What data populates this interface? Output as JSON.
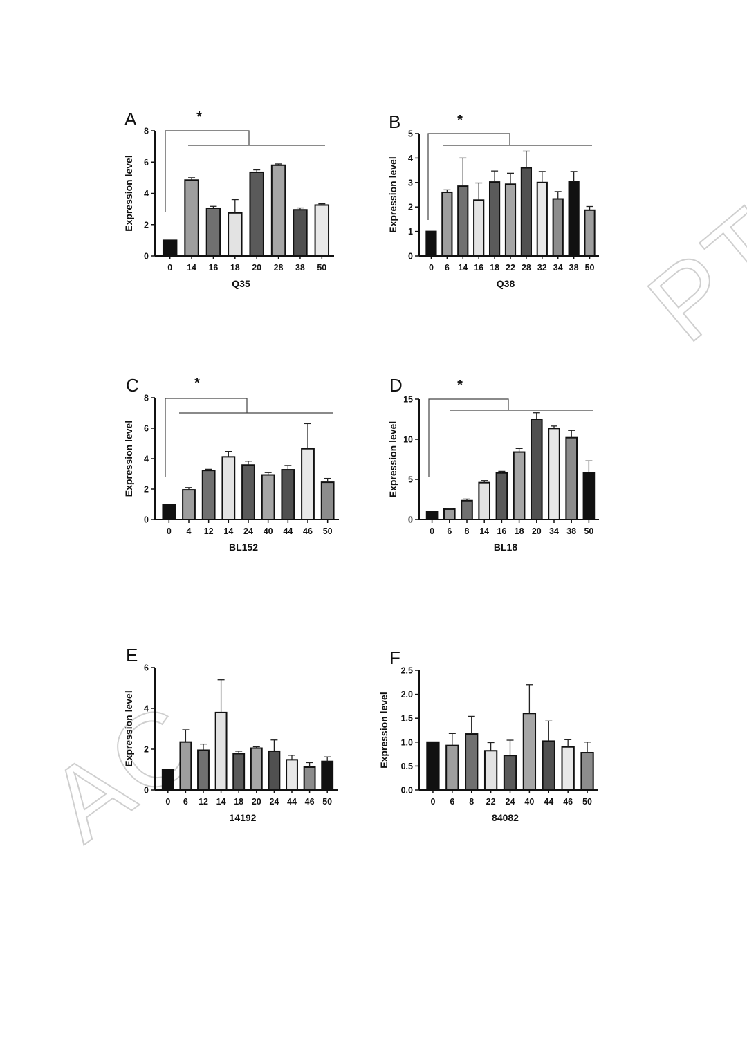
{
  "watermark": {
    "left": "AC",
    "right": "PT"
  },
  "chart_data": [
    {
      "type": "bar",
      "panel": "A",
      "title": "",
      "xlabel": "Q35",
      "ylabel": "Expression level",
      "ylim": [
        0,
        8
      ],
      "yticks": [
        0,
        2,
        4,
        6,
        8
      ],
      "ytick_labels": [
        "0",
        "2",
        "4",
        "6",
        "8"
      ],
      "categories": [
        "0",
        "14",
        "16",
        "18",
        "20",
        "28",
        "38",
        "50"
      ],
      "values": [
        1.0,
        4.85,
        3.05,
        2.75,
        5.35,
        5.8,
        2.95,
        3.25
      ],
      "errors": [
        0,
        0.15,
        0.12,
        0.85,
        0.15,
        0.08,
        0.12,
        0.08
      ],
      "colors": [
        "#111111",
        "#9e9e9e",
        "#707070",
        "#e3e3e3",
        "#5a5a5a",
        "#a6a6a6",
        "#505050",
        "#e8e8e8"
      ],
      "significance": {
        "label": "*",
        "anchor": "0",
        "span": [
          "14",
          "50"
        ]
      }
    },
    {
      "type": "bar",
      "panel": "B",
      "title": "",
      "xlabel": "Q38",
      "ylabel": "Expression level",
      "ylim": [
        0,
        5
      ],
      "yticks": [
        0,
        1,
        2,
        3,
        4,
        5
      ],
      "ytick_labels": [
        "0",
        "1",
        "2",
        "3",
        "4",
        "5"
      ],
      "categories": [
        "0",
        "6",
        "14",
        "16",
        "18",
        "22",
        "28",
        "32",
        "34",
        "38",
        "50"
      ],
      "values": [
        1.0,
        2.6,
        2.85,
        2.28,
        3.02,
        2.93,
        3.6,
        3.0,
        2.33,
        3.03,
        1.87
      ],
      "errors": [
        0,
        0.1,
        1.15,
        0.7,
        0.45,
        0.45,
        0.68,
        0.45,
        0.3,
        0.42,
        0.15
      ],
      "colors": [
        "#111111",
        "#9e9e9e",
        "#707070",
        "#e3e3e3",
        "#5a5a5a",
        "#a6a6a6",
        "#505050",
        "#e8e8e8",
        "#8c8c8c",
        "#111111",
        "#9e9e9e"
      ],
      "significance": {
        "label": "*",
        "anchor": "0",
        "span": [
          "6",
          "50"
        ]
      }
    },
    {
      "type": "bar",
      "panel": "C",
      "title": "",
      "xlabel": "BL152",
      "ylabel": "Expression level",
      "ylim": [
        0,
        8
      ],
      "yticks": [
        0,
        2,
        4,
        6,
        8
      ],
      "ytick_labels": [
        "0",
        "2",
        "4",
        "6",
        "8"
      ],
      "categories": [
        "0",
        "4",
        "12",
        "14",
        "24",
        "40",
        "44",
        "46",
        "50"
      ],
      "values": [
        1.0,
        1.95,
        3.22,
        4.12,
        3.58,
        2.93,
        3.27,
        4.65,
        2.45
      ],
      "errors": [
        0,
        0.15,
        0.08,
        0.35,
        0.25,
        0.15,
        0.28,
        1.65,
        0.25
      ],
      "colors": [
        "#111111",
        "#9e9e9e",
        "#707070",
        "#e3e3e3",
        "#5a5a5a",
        "#a6a6a6",
        "#505050",
        "#e8e8e8",
        "#8c8c8c"
      ],
      "significance": {
        "label": "*",
        "anchor": "0",
        "span": [
          "4",
          "50"
        ]
      }
    },
    {
      "type": "bar",
      "panel": "D",
      "title": "",
      "xlabel": "BL18",
      "ylabel": "Expression level",
      "ylim": [
        0,
        15
      ],
      "yticks": [
        0,
        5,
        10,
        15
      ],
      "ytick_labels": [
        "0",
        "5",
        "10",
        "15"
      ],
      "categories": [
        "0",
        "6",
        "8",
        "14",
        "16",
        "18",
        "20",
        "34",
        "38",
        "50"
      ],
      "values": [
        1.0,
        1.3,
        2.35,
        4.6,
        5.8,
        8.4,
        12.5,
        11.35,
        10.2,
        5.85
      ],
      "errors": [
        0,
        0.08,
        0.2,
        0.25,
        0.2,
        0.45,
        0.8,
        0.3,
        0.9,
        1.45
      ],
      "colors": [
        "#111111",
        "#9e9e9e",
        "#707070",
        "#e3e3e3",
        "#5a5a5a",
        "#a6a6a6",
        "#505050",
        "#e8e8e8",
        "#8c8c8c",
        "#111111"
      ],
      "significance": {
        "label": "*",
        "anchor": "0",
        "span": [
          "6",
          "50"
        ]
      }
    },
    {
      "type": "bar",
      "panel": "E",
      "title": "",
      "xlabel": "14192",
      "ylabel": "Expression level",
      "ylim": [
        0,
        6
      ],
      "yticks": [
        0,
        2,
        4,
        6
      ],
      "ytick_labels": [
        "0",
        "2",
        "4",
        "6"
      ],
      "categories": [
        "0",
        "6",
        "12",
        "14",
        "18",
        "20",
        "24",
        "44",
        "46",
        "50"
      ],
      "values": [
        1.0,
        2.35,
        1.95,
        3.8,
        1.78,
        2.05,
        1.9,
        1.48,
        1.12,
        1.4
      ],
      "errors": [
        0,
        0.6,
        0.3,
        1.6,
        0.12,
        0.07,
        0.55,
        0.22,
        0.22,
        0.22
      ],
      "colors": [
        "#111111",
        "#9e9e9e",
        "#707070",
        "#e3e3e3",
        "#5a5a5a",
        "#a6a6a6",
        "#505050",
        "#e8e8e8",
        "#8c8c8c",
        "#111111"
      ],
      "significance": null
    },
    {
      "type": "bar",
      "panel": "F",
      "title": "",
      "xlabel": "84082",
      "ylabel": "Expression level",
      "ylim": [
        0,
        2.5
      ],
      "yticks": [
        0,
        0.5,
        1,
        1.5,
        2,
        2.5
      ],
      "ytick_labels": [
        "0.0",
        "0.5",
        "1.0",
        "1.5",
        "2.0",
        "2.5"
      ],
      "categories": [
        "0",
        "6",
        "8",
        "22",
        "24",
        "40",
        "44",
        "46",
        "50"
      ],
      "values": [
        1.0,
        0.93,
        1.17,
        0.82,
        0.72,
        1.6,
        1.02,
        0.9,
        0.78
      ],
      "errors": [
        0,
        0.25,
        0.37,
        0.17,
        0.32,
        0.6,
        0.42,
        0.15,
        0.22
      ],
      "colors": [
        "#111111",
        "#9e9e9e",
        "#707070",
        "#e3e3e3",
        "#5a5a5a",
        "#a6a6a6",
        "#505050",
        "#e8e8e8",
        "#8c8c8c"
      ],
      "significance": null
    }
  ]
}
